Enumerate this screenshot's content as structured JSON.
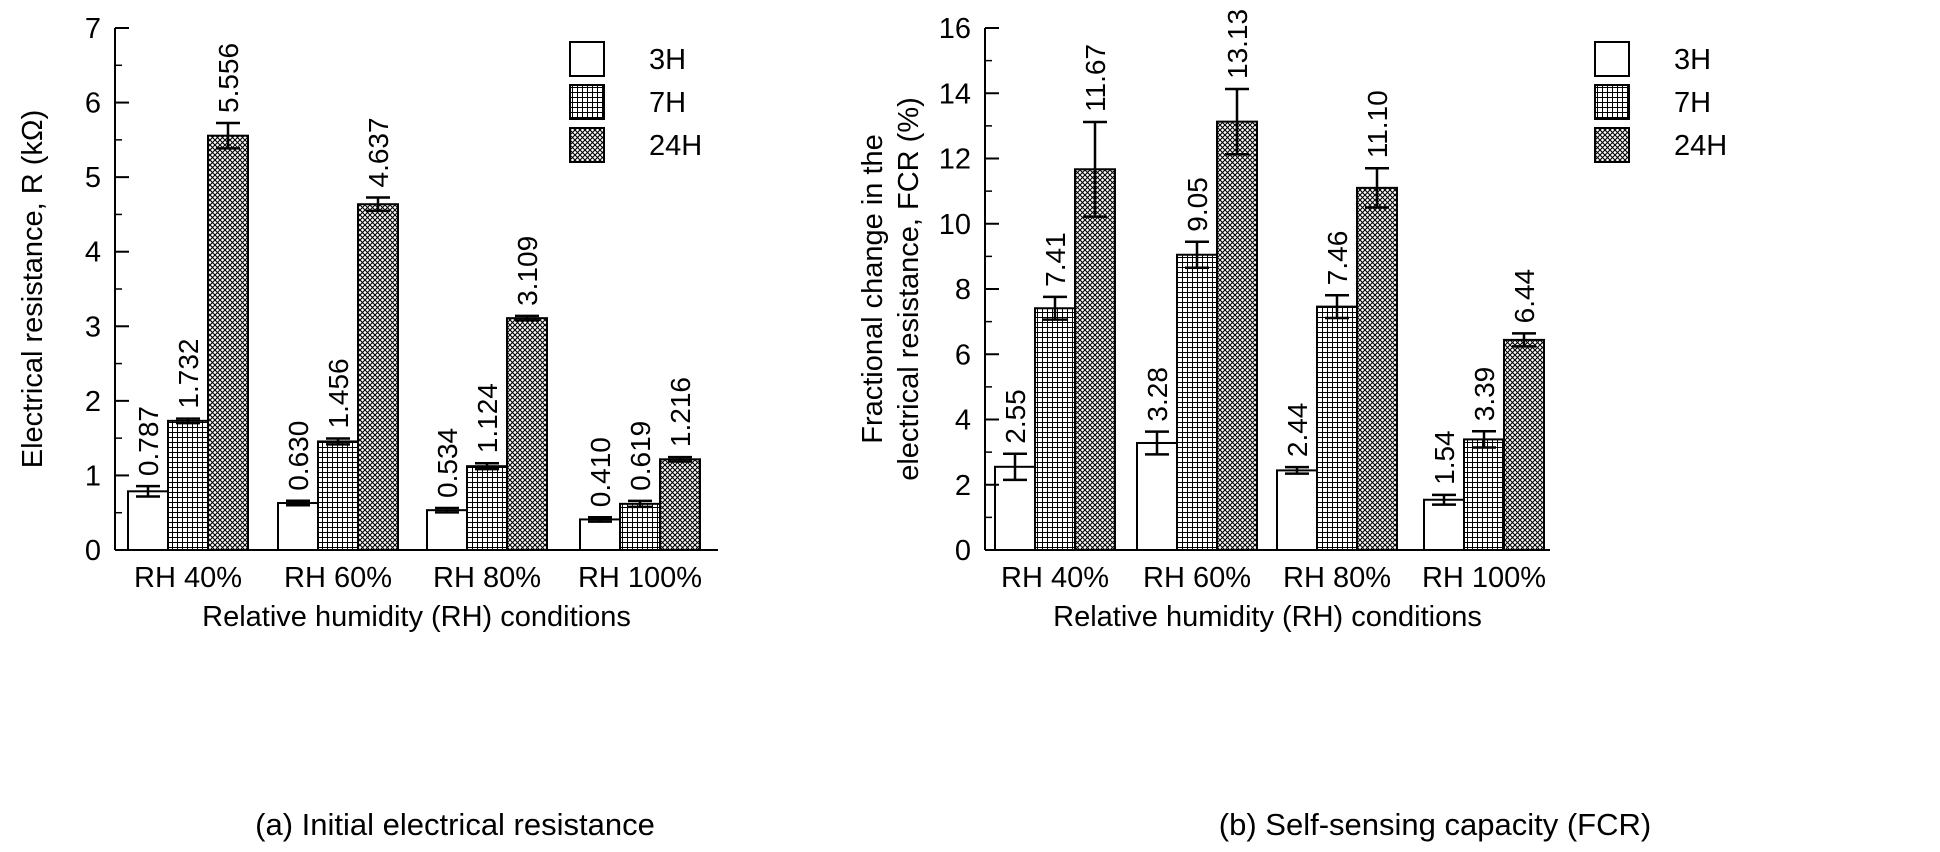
{
  "chart_data": [
    {
      "type": "bar",
      "panel": "a",
      "categories": [
        "RH 40%",
        "RH 60%",
        "RH 80%",
        "RH 100%"
      ],
      "series": [
        {
          "name": "3H",
          "values": [
            0.787,
            0.63,
            0.534,
            0.41
          ],
          "errors": [
            0.07,
            0.03,
            0.03,
            0.03
          ],
          "labels": [
            "0.787",
            "0.630",
            "0.534",
            "0.410"
          ]
        },
        {
          "name": "7H",
          "values": [
            1.732,
            1.456,
            1.124,
            0.619
          ],
          "errors": [
            0.03,
            0.04,
            0.04,
            0.04
          ],
          "labels": [
            "1.732",
            "1.456",
            "1.124",
            "0.619"
          ]
        },
        {
          "name": "24H",
          "values": [
            5.556,
            4.637,
            3.109,
            1.216
          ],
          "errors": [
            0.17,
            0.09,
            0.03,
            0.03
          ],
          "labels": [
            "5.556",
            "4.637",
            "3.109",
            "1.216"
          ]
        }
      ],
      "ylim": [
        0,
        7
      ],
      "yticks": [
        "0",
        "1",
        "2",
        "3",
        "4",
        "5",
        "6",
        "7"
      ],
      "ylabel": [
        "Electrical resistance, R (kΩ)"
      ],
      "xlabel": "Relative humidity (RH) conditions",
      "caption": "(a) Initial electrical resistance",
      "legend": [
        "3H",
        "7H",
        "24H"
      ],
      "legend_position": "top-right"
    },
    {
      "type": "bar",
      "panel": "b",
      "categories": [
        "RH 40%",
        "RH 60%",
        "RH 80%",
        "RH 100%"
      ],
      "series": [
        {
          "name": "3H",
          "values": [
            2.55,
            3.28,
            2.44,
            1.54
          ],
          "errors": [
            0.4,
            0.35,
            0.1,
            0.15
          ],
          "labels": [
            "2.55",
            "3.28",
            "2.44",
            "1.54"
          ]
        },
        {
          "name": "7H",
          "values": [
            7.41,
            9.05,
            7.46,
            3.39
          ],
          "errors": [
            0.35,
            0.4,
            0.35,
            0.25
          ],
          "labels": [
            "7.41",
            "9.05",
            "7.46",
            "3.39"
          ]
        },
        {
          "name": "24H",
          "values": [
            11.67,
            13.13,
            11.1,
            6.44
          ],
          "errors": [
            1.45,
            1.0,
            0.6,
            0.2
          ],
          "labels": [
            "11.67",
            "13.13",
            "11.10",
            "6.44"
          ]
        }
      ],
      "ylim": [
        0,
        16
      ],
      "yticks": [
        "0",
        "2",
        "4",
        "6",
        "8",
        "10",
        "12",
        "14",
        "16"
      ],
      "ylabel": [
        "Fractional change in the",
        "electrical resistance, FCR (%)"
      ],
      "xlabel": "Relative humidity (RH) conditions",
      "caption": "(b) Self-sensing capacity (FCR)",
      "legend": [
        "3H",
        "7H",
        "24H"
      ],
      "legend_position": "top-right"
    }
  ]
}
